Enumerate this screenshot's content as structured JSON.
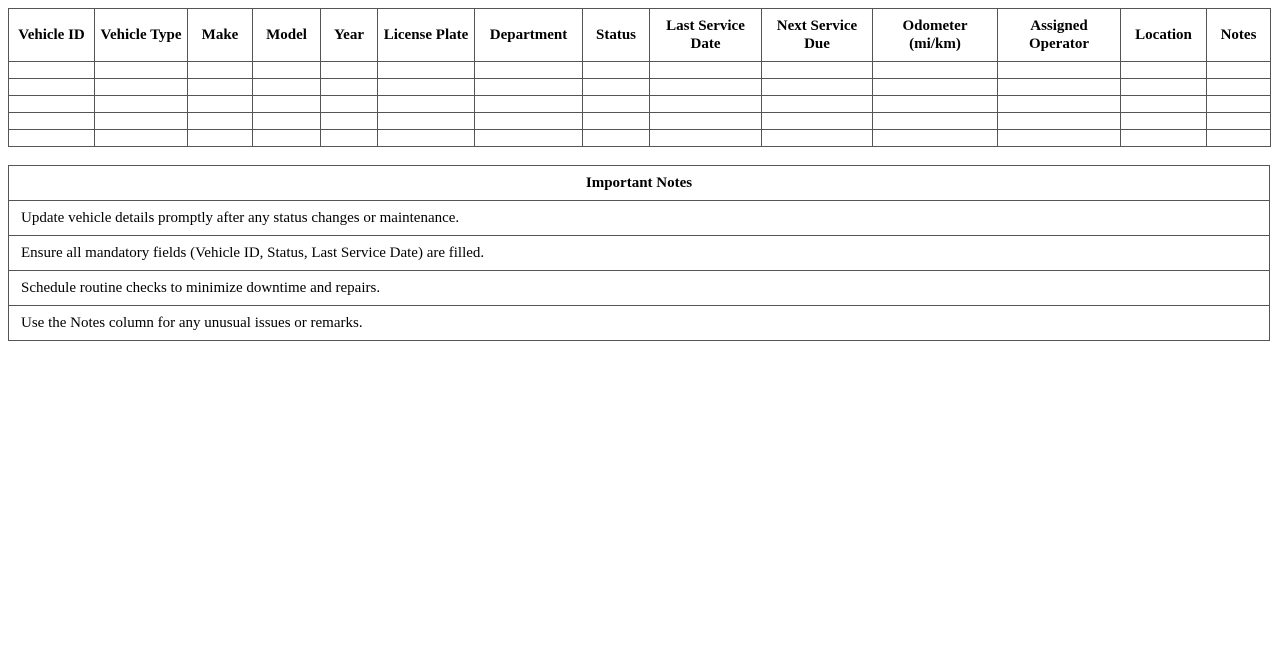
{
  "vehicle_table": {
    "columns": [
      "Vehicle ID",
      "Vehicle Type",
      "Make",
      "Model",
      "Year",
      "License Plate",
      "Department",
      "Status",
      "Last Service Date",
      "Next Service Due",
      "Odometer (mi/km)",
      "Assigned Operator",
      "Location",
      "Notes"
    ],
    "rows": [
      [
        "",
        "",
        "",
        "",
        "",
        "",
        "",
        "",
        "",
        "",
        "",
        "",
        "",
        ""
      ],
      [
        "",
        "",
        "",
        "",
        "",
        "",
        "",
        "",
        "",
        "",
        "",
        "",
        "",
        ""
      ],
      [
        "",
        "",
        "",
        "",
        "",
        "",
        "",
        "",
        "",
        "",
        "",
        "",
        "",
        ""
      ],
      [
        "",
        "",
        "",
        "",
        "",
        "",
        "",
        "",
        "",
        "",
        "",
        "",
        "",
        ""
      ],
      [
        "",
        "",
        "",
        "",
        "",
        "",
        "",
        "",
        "",
        "",
        "",
        "",
        "",
        ""
      ]
    ]
  },
  "notes": {
    "title": "Important Notes",
    "items": [
      "Update vehicle details promptly after any status changes or maintenance.",
      "Ensure all mandatory fields (Vehicle ID, Status, Last Service Date) are filled.",
      "Schedule routine checks to minimize downtime and repairs.",
      "Use the Notes column for any unusual issues or remarks."
    ]
  }
}
